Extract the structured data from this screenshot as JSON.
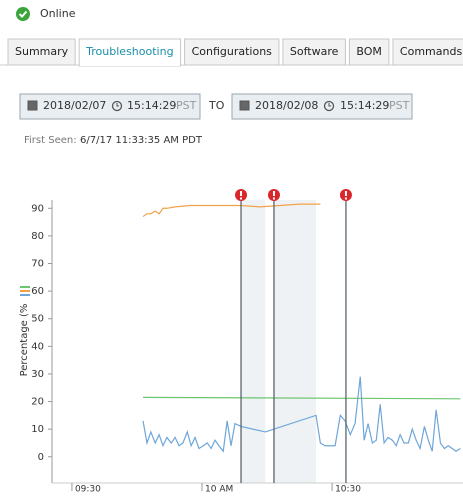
{
  "status": "Online",
  "tabs": [
    "Summary",
    "Troubleshooting",
    "Configurations",
    "Software",
    "BOM",
    "Commands"
  ],
  "active_tab": 1,
  "date_range": {
    "from": {
      "date": "2018/02/07",
      "time": "15:14:29",
      "tz": "PST"
    },
    "separator": "TO",
    "to": {
      "date": "2018/02/08",
      "time": "15:14:29",
      "tz": "PST"
    }
  },
  "first_seen": {
    "label": "First Seen:",
    "value": "6/7/17 11:33:35 AM PDT"
  },
  "chart_data": {
    "type": "line",
    "y_label": "Percentage (%",
    "xlim": [
      565.4,
      660.2
    ],
    "ylim": [
      -9.5,
      93
    ],
    "xticks": [
      {
        "value": 570,
        "label": "09:30"
      },
      {
        "value": 600,
        "label": "10 AM"
      },
      {
        "value": 630,
        "label": "10:30"
      }
    ],
    "yticks": [
      0,
      10,
      20,
      30,
      40,
      50,
      60,
      70,
      80,
      90
    ],
    "series": [
      {
        "color": "#6cc56f",
        "x": [
          586.4,
          659.6
        ],
        "values": [
          21.5,
          21
        ]
      },
      {
        "color": "#f0a24a",
        "x": [
          586.4,
          587.3,
          588.2,
          589.2,
          590.1,
          591.0,
          591.9,
          593.8,
          597.3,
          601.9,
          609.0,
          613.4,
          618.0,
          622.6,
          627.3
        ],
        "values": [
          87,
          88,
          88,
          89,
          88,
          90,
          90,
          90.5,
          91,
          91,
          91,
          90.5,
          91,
          91.5,
          91.5
        ]
      },
      {
        "color": "#6ea6d9",
        "x": [
          586.4,
          587.3,
          588.2,
          589.2,
          590.1,
          591.0,
          591.9,
          592.9,
          593.8,
          594.7,
          595.6,
          596.6,
          597.5,
          598.4,
          599.3,
          600.3,
          601.2,
          602.1,
          603.0,
          603.9,
          604.9,
          605.8,
          606.7,
          607.6,
          609.0,
          614.6,
          626.3,
          627.3,
          628.4,
          629.6,
          630.7,
          631.9,
          633.0,
          634.2,
          635.3,
          636.5,
          637.4,
          638.3,
          639.3,
          640.2,
          641.1,
          642.0,
          642.9,
          643.9,
          644.8,
          645.7,
          646.6,
          647.6,
          648.5,
          649.4,
          650.3,
          651.3,
          652.2,
          653.1,
          654.0,
          655.0,
          655.9,
          656.8,
          657.7,
          658.6,
          659.6
        ],
        "values": [
          13,
          5,
          9,
          5,
          8,
          4,
          7,
          5,
          7,
          4,
          5,
          9,
          4,
          7,
          3,
          4,
          5,
          3,
          6,
          4,
          2,
          13,
          4,
          12,
          11,
          9,
          15,
          5,
          4,
          4,
          4,
          15,
          13,
          8,
          12,
          29,
          6,
          12,
          5,
          6,
          19,
          5,
          7,
          6,
          4,
          8,
          5,
          5,
          10,
          6,
          3,
          11,
          6,
          2,
          17,
          5,
          3,
          4,
          3,
          2,
          3
        ]
      }
    ],
    "events": [
      609.0,
      616.6,
      633.2
    ],
    "bands": [
      [
        609.0,
        614.6
      ],
      [
        616.6,
        626.3
      ]
    ]
  }
}
